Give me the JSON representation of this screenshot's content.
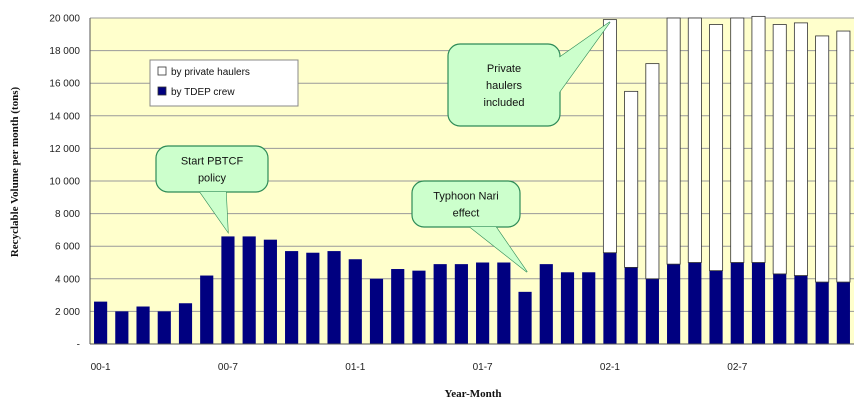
{
  "chart_data": {
    "type": "bar",
    "stacked": true,
    "xlabel": "Year-Month",
    "ylabel": "Recyclable Volume per month (tons)",
    "ylim": [
      0,
      20000
    ],
    "yticks": [
      "-",
      "2 000",
      "4 000",
      "6 000",
      "8 000",
      "10 000",
      "12 000",
      "14 000",
      "16 000",
      "18 000",
      "20 000"
    ],
    "xticks": [
      {
        "index": 0,
        "label": "00-1"
      },
      {
        "index": 6,
        "label": "00-7"
      },
      {
        "index": 12,
        "label": "01-1"
      },
      {
        "index": 18,
        "label": "01-7"
      },
      {
        "index": 24,
        "label": "02-1"
      },
      {
        "index": 30,
        "label": "02-7"
      }
    ],
    "grid": true,
    "legend_position": "top-left",
    "plot_background": "#ffffcc",
    "series": [
      {
        "name": "by TDEP crew",
        "color": "#000080",
        "values": [
          2600,
          2000,
          2300,
          2000,
          2500,
          4200,
          6600,
          6600,
          6400,
          5700,
          5600,
          5700,
          5200,
          4000,
          4600,
          4500,
          4900,
          4900,
          5000,
          5000,
          3200,
          4900,
          4400,
          4400,
          5600,
          4700,
          4000,
          4900,
          5000,
          4500,
          5000,
          5000,
          4300,
          4200,
          3800,
          3800
        ]
      },
      {
        "name": "by private haulers",
        "color": "#ffffff",
        "values": [
          0,
          0,
          0,
          0,
          0,
          0,
          0,
          0,
          0,
          0,
          0,
          0,
          0,
          0,
          0,
          0,
          0,
          0,
          0,
          0,
          0,
          0,
          0,
          0,
          14300,
          10800,
          13200,
          15100,
          15000,
          15100,
          15000,
          15100,
          15300,
          15500,
          15100,
          15400
        ]
      }
    ],
    "annotations": [
      {
        "text": [
          "Start PBTCF",
          "policy"
        ],
        "target_index": 6
      },
      {
        "text": [
          "Typhoon Nari",
          "effect"
        ],
        "target_index": 20
      },
      {
        "text": [
          "Private",
          "haulers",
          "included"
        ],
        "target_index": 24
      }
    ]
  }
}
